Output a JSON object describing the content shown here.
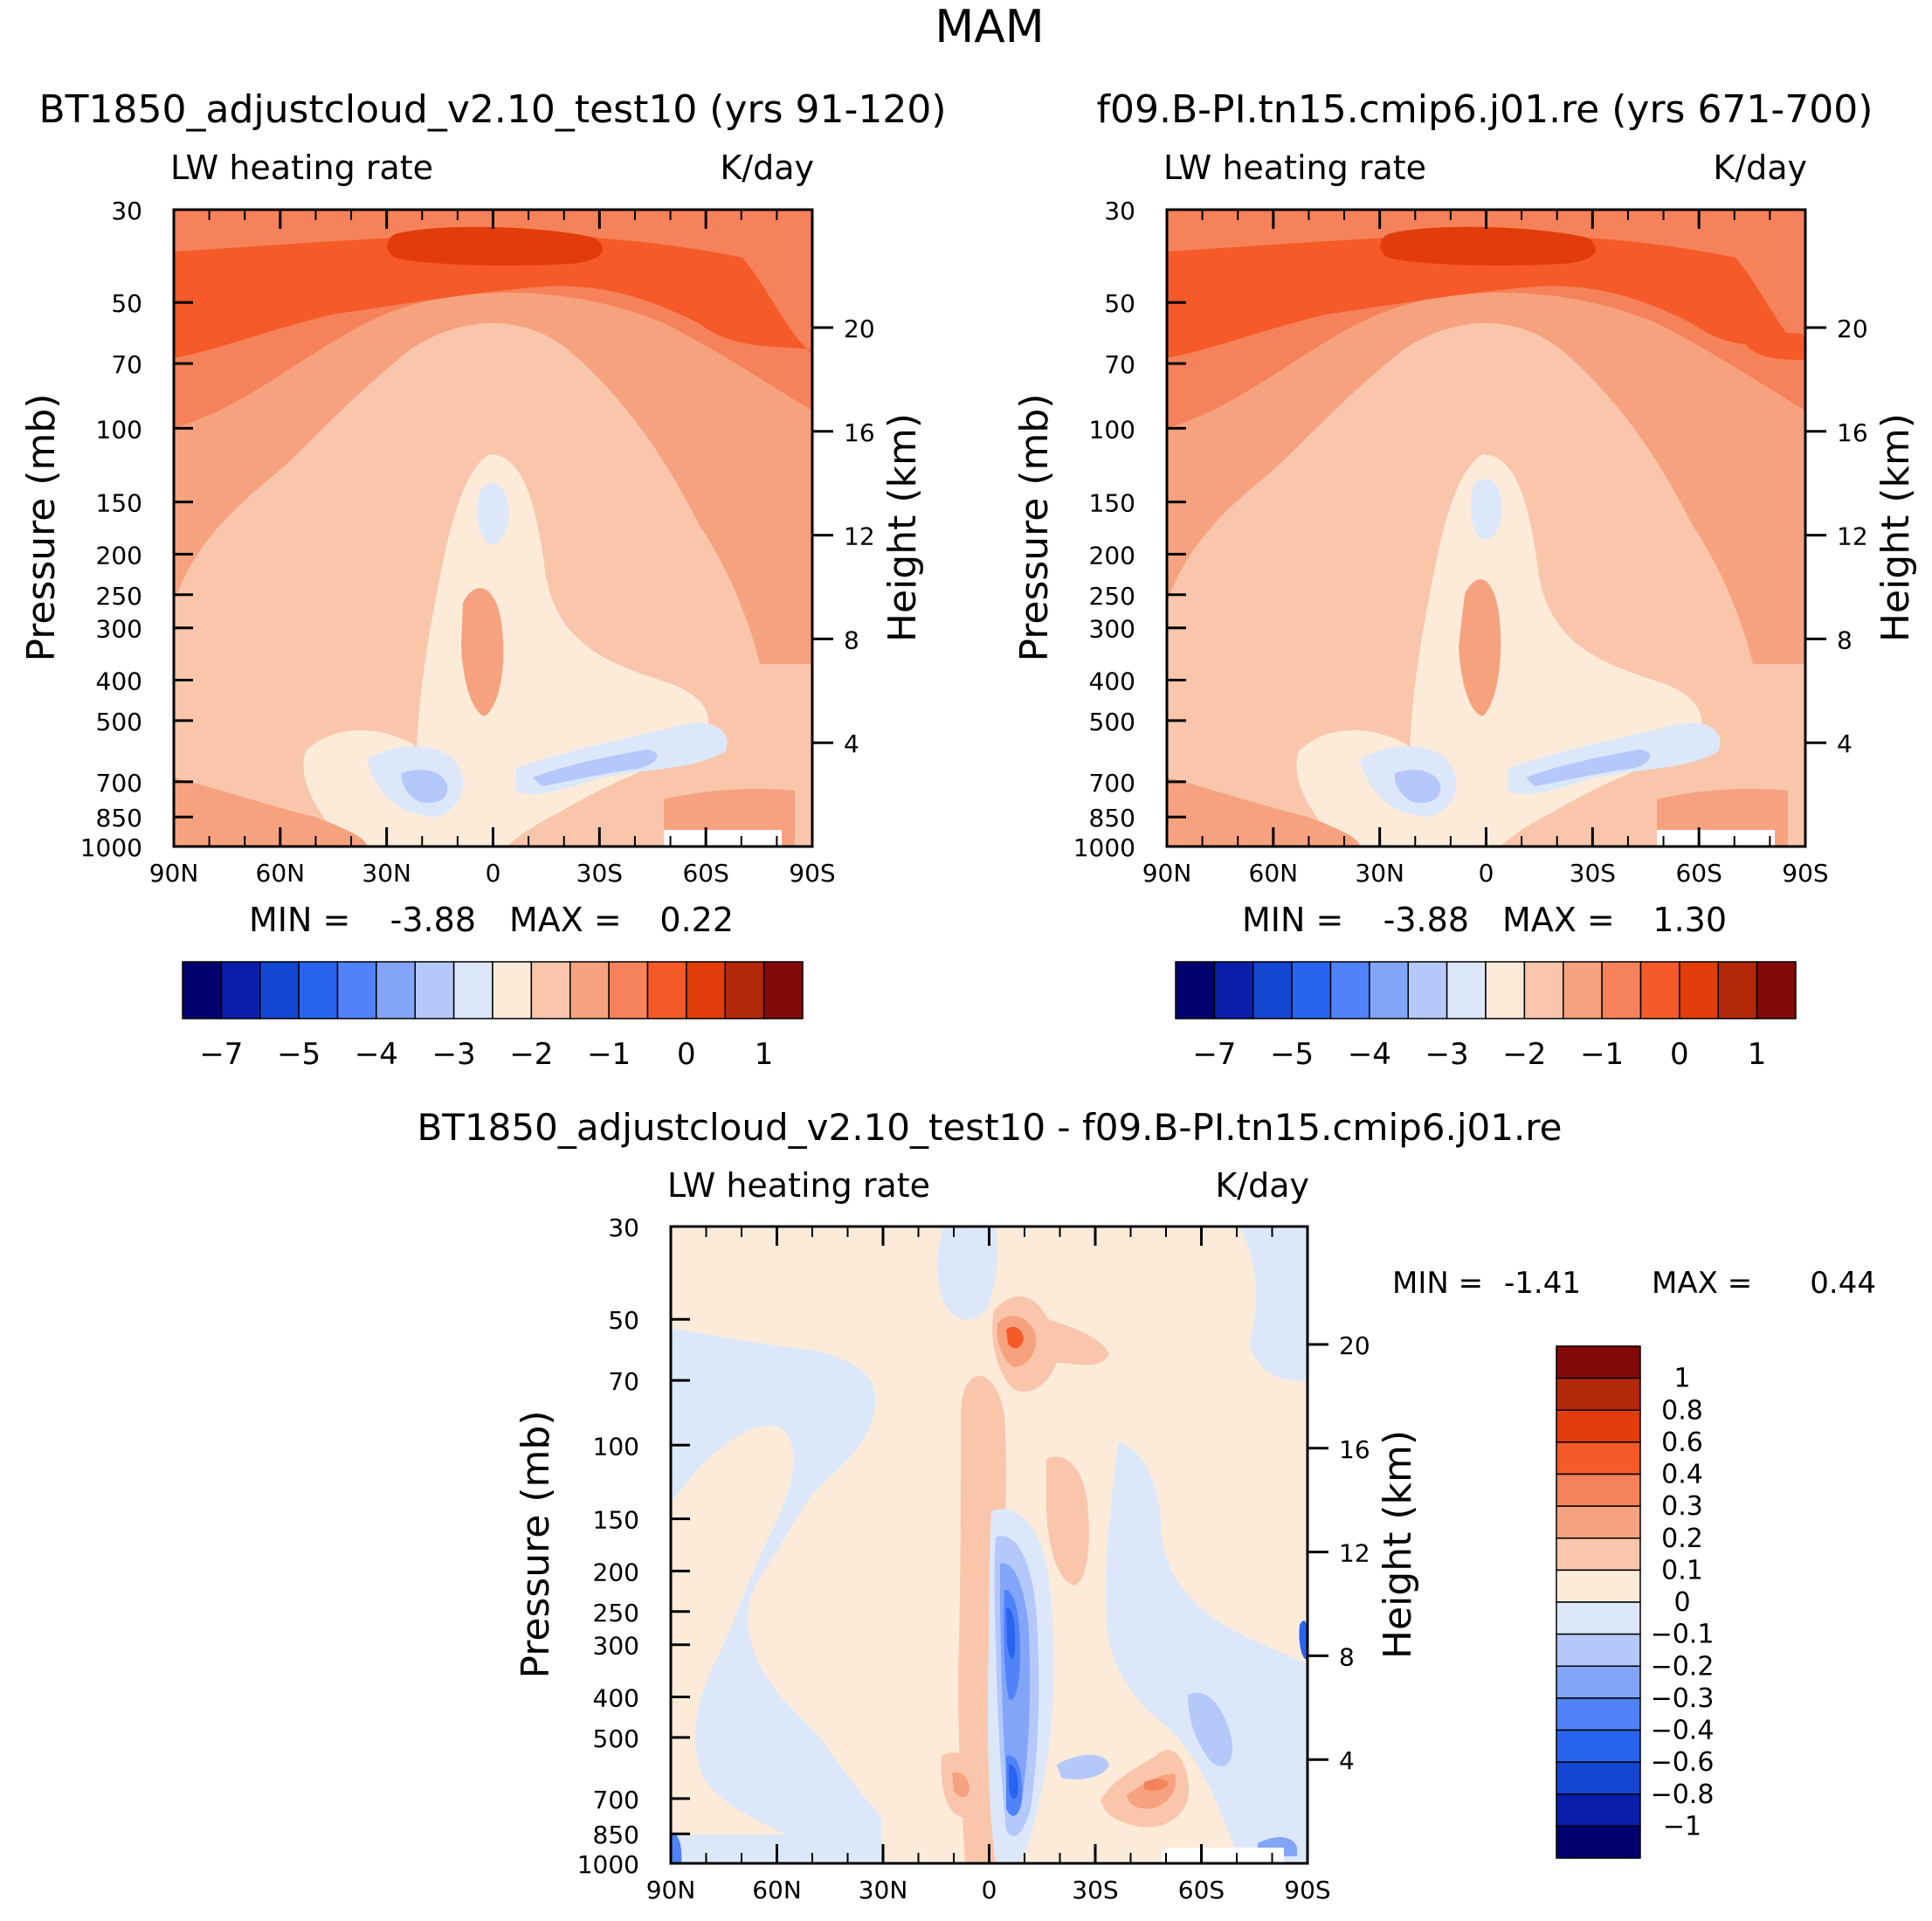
{
  "figure": {
    "title": "MAM"
  },
  "colors": {
    "abs": [
      "#00006e",
      "#0a1eaa",
      "#1446d2",
      "#2864f0",
      "#5082fa",
      "#82a5fa",
      "#b4c8fa",
      "#dce8fa",
      "#fdebda",
      "#f9c6ac",
      "#f7a27e",
      "#f5825a",
      "#f55a28",
      "#e13c0a",
      "#b4280a",
      "#820a0a"
    ],
    "diff": [
      "#00006e",
      "#0a1eaa",
      "#1446d2",
      "#2864f0",
      "#5082fa",
      "#82a5fa",
      "#b4c8fa",
      "#dce8fa",
      "#fdebda",
      "#f9c6ac",
      "#f7a27e",
      "#f5825a",
      "#f55a28",
      "#e13c0a",
      "#b4280a",
      "#820a0a"
    ]
  },
  "chart_data": [
    {
      "id": "panel1",
      "type": "contour",
      "title": "BT1850_adjustcloud_v2.10_test10 (yrs 91-120)",
      "variable": "LW heating rate",
      "units": "K/day",
      "xlabel": "",
      "ylabel": "Pressure (mb)",
      "y2label": "Height (km)",
      "x_ticks": [
        "90N",
        "60N",
        "30N",
        "0",
        "30S",
        "60S",
        "90S"
      ],
      "x_values": [
        90,
        60,
        30,
        0,
        -30,
        -60,
        -90
      ],
      "y_ticks": [
        30,
        50,
        70,
        100,
        150,
        200,
        250,
        300,
        400,
        500,
        700,
        850,
        1000
      ],
      "y_range": [
        30,
        1000
      ],
      "height_ticks": [
        20,
        16,
        12,
        8,
        4
      ],
      "min_label": "MIN =",
      "min_value": "-3.88",
      "max_label": "MAX =",
      "max_value": "0.22",
      "colorbar": {
        "labels": [
          "-7",
          "-5",
          "-4",
          "-3",
          "-2",
          "-1",
          "0",
          "1"
        ],
        "n_colors": 16,
        "orientation": "horizontal"
      }
    },
    {
      "id": "panel2",
      "type": "contour",
      "title": "f09.B-PI.tn15.cmip6.j01.re (yrs 671-700)",
      "variable": "LW heating rate",
      "units": "K/day",
      "ylabel": "Pressure (mb)",
      "y2label": "Height (km)",
      "x_ticks": [
        "90N",
        "60N",
        "30N",
        "0",
        "30S",
        "60S",
        "90S"
      ],
      "x_values": [
        90,
        60,
        30,
        0,
        -30,
        -60,
        -90
      ],
      "y_ticks": [
        30,
        50,
        70,
        100,
        150,
        200,
        250,
        300,
        400,
        500,
        700,
        850,
        1000
      ],
      "y_range": [
        30,
        1000
      ],
      "height_ticks": [
        20,
        16,
        12,
        8,
        4
      ],
      "min_label": "MIN =",
      "min_value": "-3.88",
      "max_label": "MAX =",
      "max_value": "1.30",
      "colorbar": {
        "labels": [
          "-7",
          "-5",
          "-4",
          "-3",
          "-2",
          "-1",
          "0",
          "1"
        ],
        "n_colors": 16,
        "orientation": "horizontal"
      }
    },
    {
      "id": "panel3",
      "type": "contour",
      "title": "BT1850_adjustcloud_v2.10_test10 - f09.B-PI.tn15.cmip6.j01.re",
      "variable": "LW heating rate",
      "units": "K/day",
      "ylabel": "Pressure (mb)",
      "y2label": "Height (km)",
      "x_ticks": [
        "90N",
        "60N",
        "30N",
        "0",
        "30S",
        "60S",
        "90S"
      ],
      "x_values": [
        90,
        60,
        30,
        0,
        -30,
        -60,
        -90
      ],
      "y_ticks": [
        30,
        50,
        70,
        100,
        150,
        200,
        250,
        300,
        400,
        500,
        700,
        850,
        1000
      ],
      "y_range": [
        30,
        1000
      ],
      "height_ticks": [
        20,
        16,
        12,
        8,
        4
      ],
      "min_label": "MIN =",
      "min_value": "-1.41",
      "max_label": "MAX =",
      "max_value": "0.44",
      "colorbar": {
        "labels": [
          "1",
          "0.8",
          "0.6",
          "0.4",
          "0.3",
          "0.2",
          "0.1",
          "0",
          "-0.1",
          "-0.2",
          "-0.3",
          "-0.4",
          "-0.6",
          "-0.8",
          "-1"
        ],
        "n_colors": 16,
        "orientation": "vertical"
      }
    }
  ]
}
